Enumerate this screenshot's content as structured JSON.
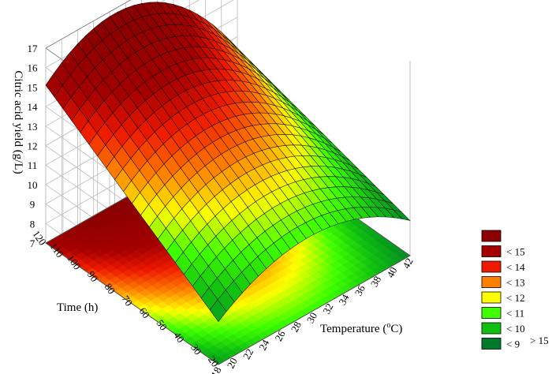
{
  "chart_data": {
    "type": "surface3d",
    "title": "",
    "zlabel": "Citric acid yield (g/L)",
    "time_label": "Time (h)",
    "temperature_label_prefix": "Temperature (",
    "temperature_label_sup": "o",
    "temperature_label_suffix": "C)",
    "temperature_ticks": [
      "18",
      "20",
      "22",
      "24",
      "26",
      "28",
      "30",
      "32",
      "34",
      "36",
      "38",
      "40",
      "42"
    ],
    "time_ticks": [
      "20",
      "30",
      "40",
      "50",
      "60",
      "70",
      "80",
      "90",
      "100",
      "110",
      "120"
    ],
    "z_ticks": [
      "7",
      "8",
      "9",
      "10",
      "11",
      "12",
      "13",
      "14",
      "15",
      "16",
      "17"
    ],
    "temperature_range": [
      18,
      42
    ],
    "time_range": [
      20,
      120
    ],
    "z_range": [
      7,
      17
    ],
    "surface_samples": [
      {
        "temperature": 18,
        "time": 120,
        "yield": 15.1
      },
      {
        "temperature": 18,
        "time": 20,
        "yield": 9.2
      },
      {
        "temperature": 30,
        "time": 120,
        "yield": 16.5
      },
      {
        "temperature": 30,
        "time": 20,
        "yield": 10.9
      },
      {
        "temperature": 42,
        "time": 120,
        "yield": 11.4
      },
      {
        "temperature": 42,
        "time": 20,
        "yield": 8.8
      }
    ],
    "legend": [
      {
        "label": "",
        "color": "#8b0000"
      },
      {
        "label": "< 15",
        "color": "#a50000"
      },
      {
        "label": "< 14",
        "color": "#ee1a00"
      },
      {
        "label": "< 13",
        "color": "#ff8000"
      },
      {
        "label": "< 12",
        "color": "#ffff00"
      },
      {
        "label": "< 11",
        "color": "#40ff00"
      },
      {
        "label": "< 10",
        "color": "#10c010"
      },
      {
        "label": "< 9",
        "color": "#007a2a"
      }
    ],
    "legend_extra": "> 15",
    "grid": true
  }
}
